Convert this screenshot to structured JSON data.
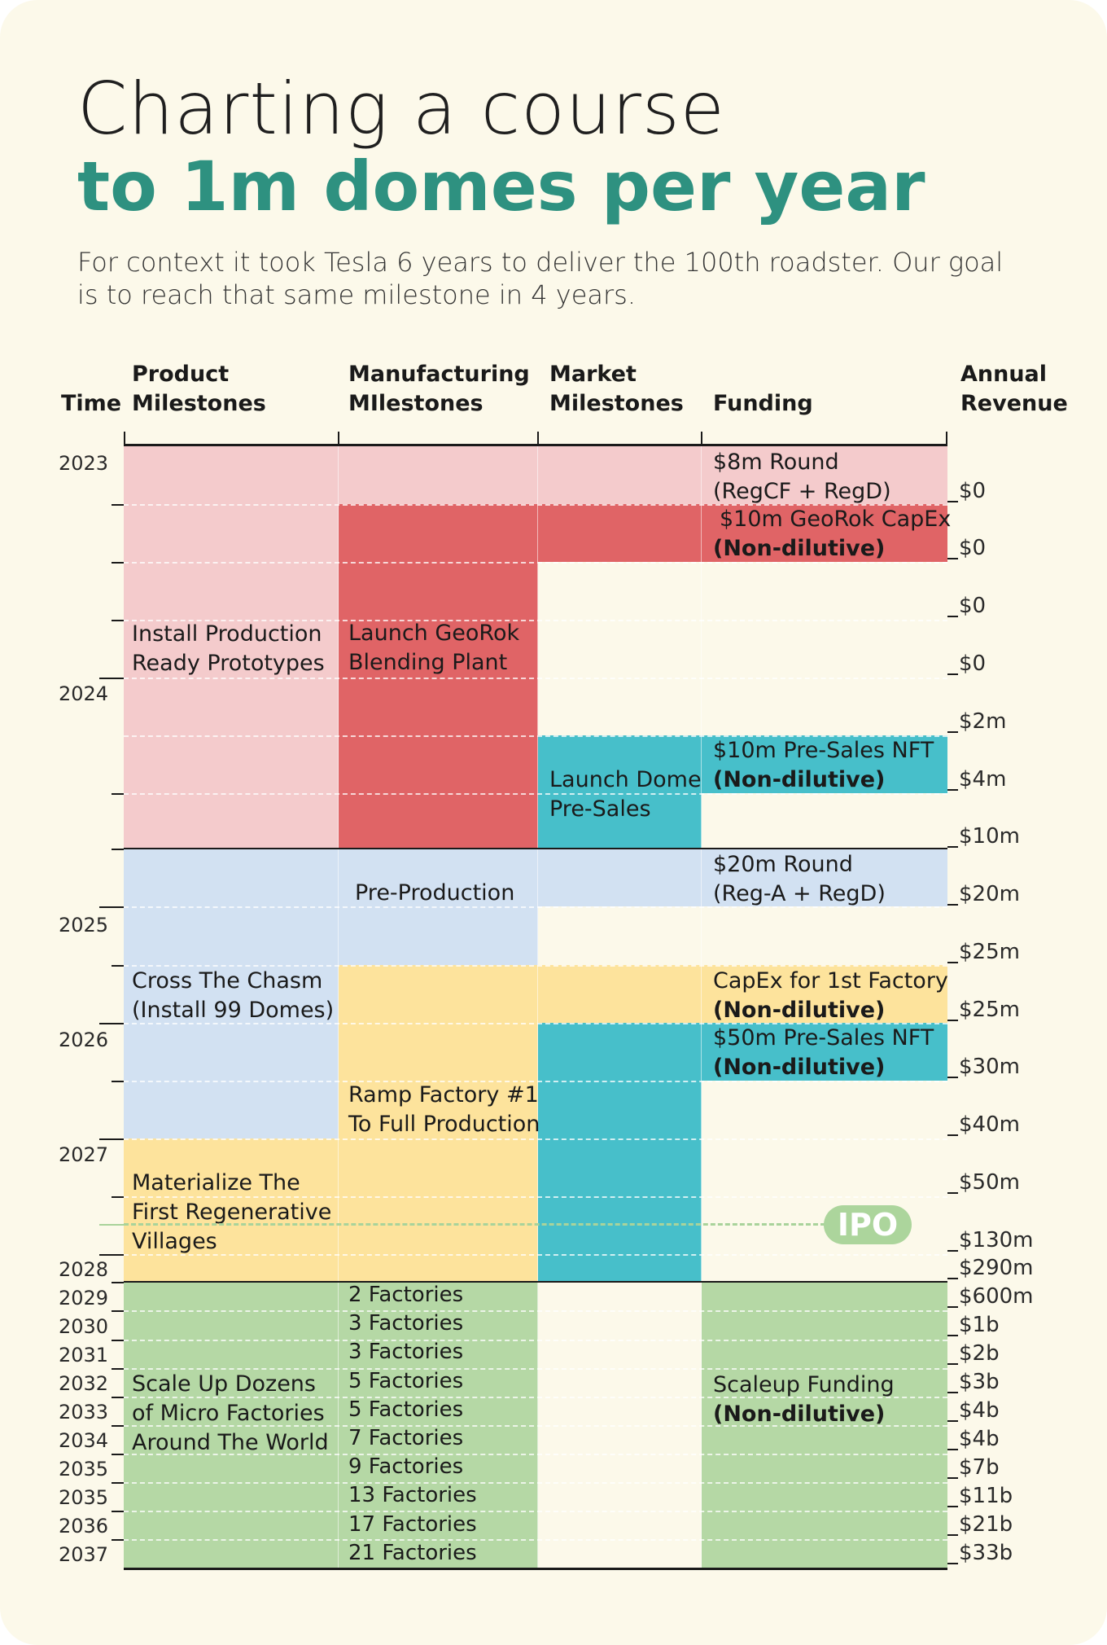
{
  "title": {
    "line1": "Charting a course",
    "line2": "to 1m domes per year"
  },
  "subtitle": "For context it took Tesla 6 years to deliver the 100th roadster. Our goal is to reach that same milestone in 4 years.",
  "headers": {
    "time": "Time",
    "product": "Product\nMilestones",
    "manufacturing": "Manufacturing\nMIlestones",
    "market": "Market\nMilestones",
    "funding": "Funding",
    "revenue": "Annual\nRevenue"
  },
  "years": [
    "2023",
    "2024",
    "2025",
    "2026",
    "2027",
    "2028",
    "2029",
    "2030",
    "2031",
    "2032",
    "2033",
    "2034",
    "2035",
    "2035",
    "2036",
    "2037"
  ],
  "revenue": [
    "$0",
    "$0",
    "$0",
    "$0",
    "$2m",
    "$4m",
    "$10m",
    "$20m",
    "$25m",
    "$25m",
    "$30m",
    "$40m",
    "$50m",
    "$130m",
    "$290m",
    "$600m",
    "$1b",
    "$2b",
    "$3b",
    "$4b",
    "$4b",
    "$7b",
    "$11b",
    "$21b",
    "$33b"
  ],
  "product": [
    "Install Production\nReady Prototypes",
    "Cross The Chasm\n(Install 99 Domes)",
    "Materialize The\nFirst Regenerative\nVillages",
    "Scale Up Dozens\nof Micro Factories\nAround The World"
  ],
  "manufacturing": [
    "Launch GeoRok\nBlending Plant",
    "Pre-Production",
    "Ramp Factory #1\nTo Full Production"
  ],
  "factories": [
    "2 Factories",
    "3 Factories",
    "3 Factories",
    "5 Factories",
    "5 Factories",
    "7 Factories",
    "9 Factories",
    "13 Factories",
    "17 Factories",
    "21 Factories"
  ],
  "market": [
    "Launch Dome\nPre-Sales"
  ],
  "funding": [
    {
      "line1": "$8m Round",
      "line2": "(RegCF + RegD)"
    },
    {
      "line1": "$10m GeoRok CapEx",
      "line2": "(Non-dilutive)"
    },
    {
      "line1": "$10m Pre-Sales NFT",
      "line2": "(Non-dilutive)"
    },
    {
      "line1": "$20m Round",
      "line2": "(Reg-A + RegD)"
    },
    {
      "line1": "CapEx for 1st Factory",
      "line2": "(Non-dilutive)"
    },
    {
      "line1": "$50m Pre-Sales NFT",
      "line2": "(Non-dilutive)"
    },
    {
      "line1": "Scaleup Funding",
      "line2": "(Non-dilutive)"
    }
  ],
  "ipo": "IPO",
  "colors": {
    "pink": "#f4cbcc",
    "red": "#e06466",
    "teal": "#47bfca",
    "blue": "#d2e1f2",
    "yellow": "#fde39c",
    "green": "#b5d8a5",
    "title_accent": "#2e9180"
  }
}
